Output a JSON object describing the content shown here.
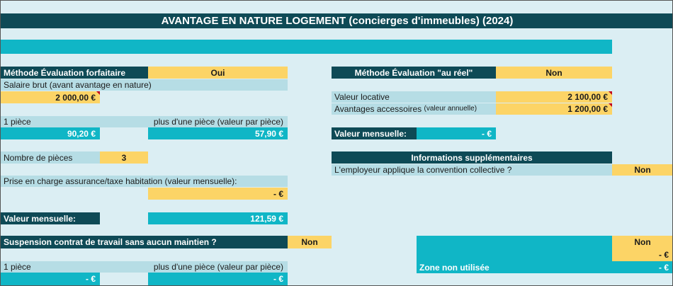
{
  "title": "AVANTAGE EN NATURE LOGEMENT (concierges d'immeubles) (2024)",
  "left": {
    "method_label": "Méthode Évaluation forfaitaire",
    "method_value": "Oui",
    "salary_label": "Salaire brut (avant avantage en nature)",
    "salary_value": "2 000,00 €",
    "one_room_label": "1 pièce",
    "more_rooms_label": "plus d'une pièce (valeur par pièce)",
    "one_room_value": "90,20 €",
    "more_rooms_value": "57,90 €",
    "rooms_label": "Nombre de pièces",
    "rooms_value": "3",
    "insurance_label": "Prise en charge assurance/taxe habitation (valeur mensuelle):",
    "insurance_value": "-   €",
    "monthly_label": "Valeur mensuelle:",
    "monthly_value": "121,59 €",
    "suspension_label": "Suspension contrat de travail sans aucun maintien ?",
    "suspension_value": "Non",
    "one_room_label2": "1 pièce",
    "more_rooms_label2": "plus d'une pièce (valeur par pièce)",
    "one_room_value2": "-   €",
    "more_rooms_value2": "-   €"
  },
  "right": {
    "method_label": "Méthode Évaluation \"au réel\"",
    "method_value": "Non",
    "rental_label": "Valeur locative",
    "rental_value": "2 100,00 €",
    "benefits_label": "Avantages accessoires",
    "benefits_note": "(valeur annuelle)",
    "benefits_value": "1 200,00 €",
    "monthly_label": "Valeur mensuelle:",
    "monthly_value": "-   €",
    "info_title": "Informations supplémentaires",
    "convention_label": "L'employeur applique la convention collective ?",
    "convention_value": "Non",
    "side_value": "Non",
    "side_amount": "-   €",
    "unused_label": "Zone non utilisée",
    "unused_value": "-   €"
  }
}
